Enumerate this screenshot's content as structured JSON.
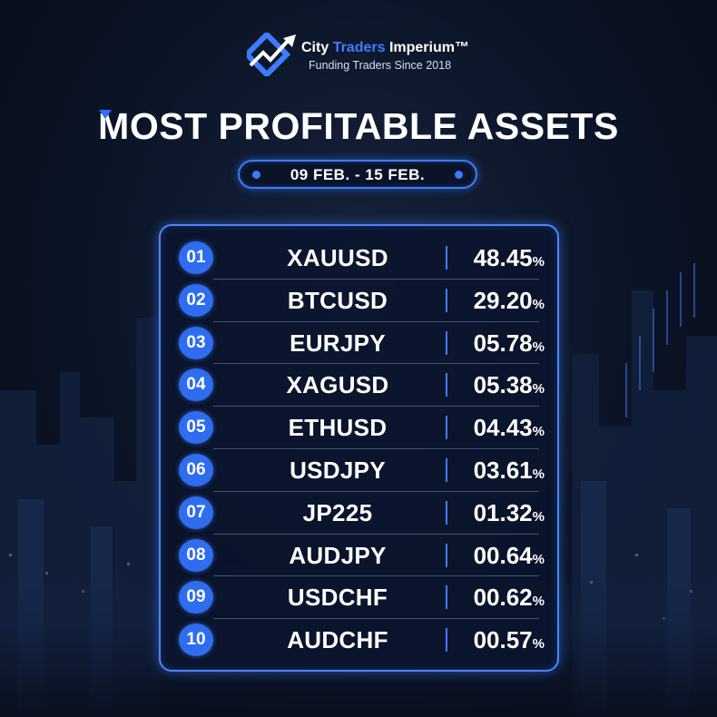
{
  "brand": {
    "name_part1": "City",
    "name_part2": "Traders",
    "name_part3": "Imperium™",
    "tagline": "Funding Traders Since 2018"
  },
  "headline": {
    "first_letter": "M",
    "rest": "OST PROFITABLE ASSETS"
  },
  "date_range": "09 FEB. - 15 FEB.",
  "percent_sign": "%",
  "rows": [
    {
      "rank": "01",
      "asset": "XAUUSD",
      "value": "48.45"
    },
    {
      "rank": "02",
      "asset": "BTCUSD",
      "value": "29.20"
    },
    {
      "rank": "03",
      "asset": "EURJPY",
      "value": "05.78"
    },
    {
      "rank": "04",
      "asset": "XAGUSD",
      "value": "05.38"
    },
    {
      "rank": "05",
      "asset": "ETHUSD",
      "value": "04.43"
    },
    {
      "rank": "06",
      "asset": "USDJPY",
      "value": "03.61"
    },
    {
      "rank": "07",
      "asset": "JP225",
      "value": "01.32"
    },
    {
      "rank": "08",
      "asset": "AUDJPY",
      "value": "00.64"
    },
    {
      "rank": "09",
      "asset": "USDCHF",
      "value": "00.62"
    },
    {
      "rank": "10",
      "asset": "AUDCHF",
      "value": "00.57"
    }
  ],
  "colors": {
    "accent": "#2e6cf0",
    "background": "#0b1426",
    "text": "#ffffff"
  }
}
